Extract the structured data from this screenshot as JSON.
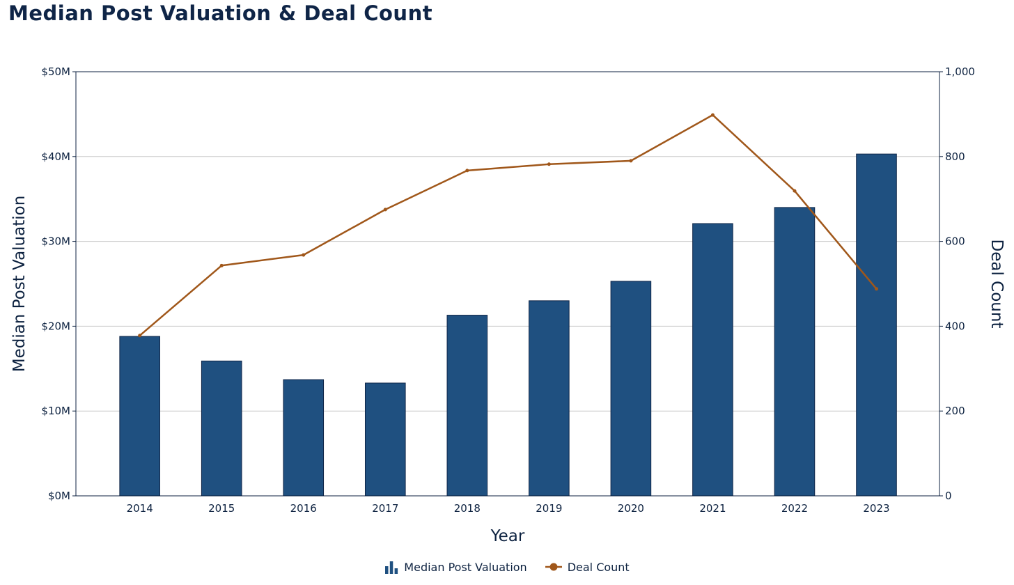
{
  "title": "Median Post Valuation & Deal Count",
  "colors": {
    "bar": "#1f5080",
    "bar_edge": "#0f2547",
    "line": "#a0571a",
    "grid": "#c8c8c8",
    "axis": "#0d2240"
  },
  "chart_data": {
    "type": "bar",
    "title": "Median Post Valuation & Deal Count",
    "xlabel": "Year",
    "ylabel": "Median Post Valuation",
    "y2label": "Deal Count",
    "categories": [
      "2014",
      "2015",
      "2016",
      "2017",
      "2018",
      "2019",
      "2020",
      "2021",
      "2022",
      "2023"
    ],
    "ylim": [
      0,
      50
    ],
    "y_ticks": [
      0,
      10,
      20,
      30,
      40,
      50
    ],
    "y_tick_labels": [
      "$0M",
      "$10M",
      "$20M",
      "$30M",
      "$40M",
      "$50M"
    ],
    "y2lim": [
      0,
      1000
    ],
    "y2_ticks": [
      0,
      200,
      400,
      600,
      800,
      1000
    ],
    "y2_tick_labels": [
      "0",
      "200",
      "400",
      "600",
      "800",
      "1,000"
    ],
    "grid": true,
    "legend_position": "bottom-center",
    "series": [
      {
        "name": "Median Post Valuation",
        "type": "bar",
        "axis": "left",
        "unit": "$M",
        "values": [
          18.8,
          15.9,
          13.7,
          13.3,
          21.3,
          23.0,
          25.3,
          32.1,
          34.0,
          40.3
        ]
      },
      {
        "name": "Deal Count",
        "type": "line",
        "axis": "right",
        "values": [
          378,
          543,
          568,
          675,
          767,
          782,
          790,
          898,
          719,
          488
        ]
      }
    ]
  },
  "legend": {
    "bar_label": "Median Post Valuation",
    "line_label": "Deal Count"
  }
}
